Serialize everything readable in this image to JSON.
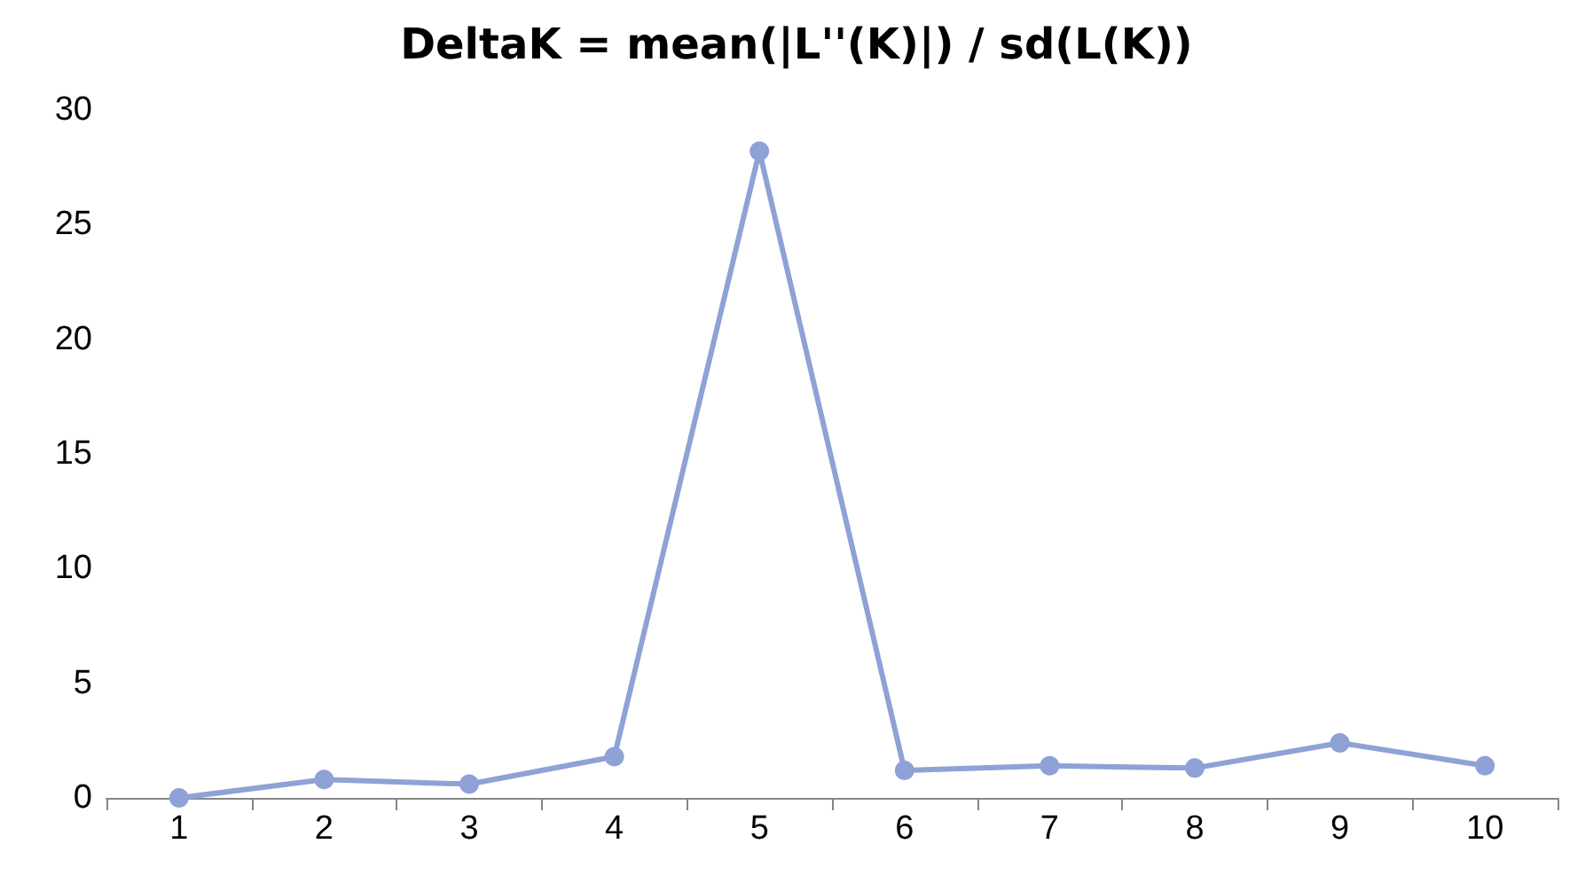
{
  "chart_data": {
    "type": "line",
    "title": "DeltaK = mean(|L''(K)|) / sd(L(K))",
    "categories": [
      "1",
      "2",
      "3",
      "4",
      "5",
      "6",
      "7",
      "8",
      "9",
      "10"
    ],
    "series": [
      {
        "color": "#8fa2d6",
        "values": [
          0,
          0.8,
          0.6,
          1.8,
          28.2,
          1.2,
          1.4,
          1.3,
          2.4,
          1.4
        ]
      }
    ],
    "ylim": [
      0,
      30
    ],
    "yticks": [
      0,
      5,
      10,
      15,
      20,
      25,
      30
    ],
    "grid": false,
    "marker": "circle",
    "line_style": "solid"
  }
}
